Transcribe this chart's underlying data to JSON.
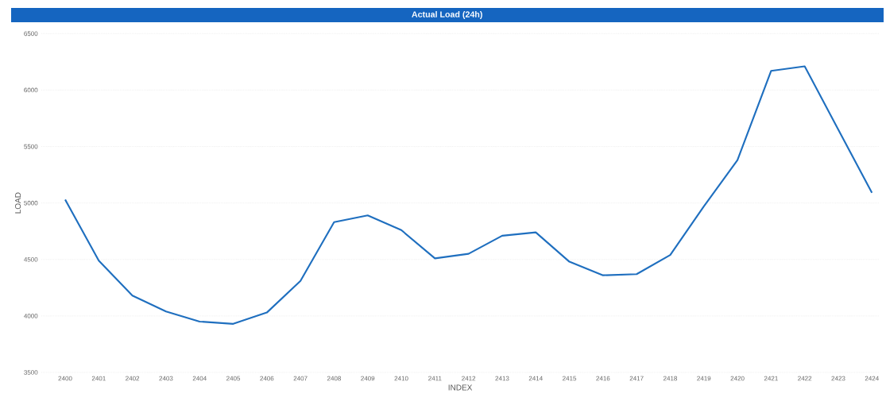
{
  "chart_data": {
    "type": "line",
    "title": "Actual Load (24h)",
    "xlabel": "INDEX",
    "ylabel": "LOAD",
    "categories": [
      "2400",
      "2401",
      "2402",
      "2403",
      "2404",
      "2405",
      "2406",
      "2407",
      "2408",
      "2409",
      "2410",
      "2411",
      "2412",
      "2413",
      "2414",
      "2415",
      "2416",
      "2417",
      "2418",
      "2419",
      "2420",
      "2421",
      "2422",
      "2423",
      "2424"
    ],
    "values": [
      5030,
      4490,
      4180,
      4040,
      3950,
      3930,
      4030,
      4310,
      4830,
      4890,
      4760,
      4510,
      4550,
      4710,
      4740,
      4480,
      4360,
      4370,
      4540,
      4970,
      5380,
      6170,
      6210,
      5650,
      5090
    ],
    "color": "#1f6fbf",
    "ylim": [
      3500,
      6500
    ],
    "yticks": [
      3500,
      4000,
      4500,
      5000,
      5500,
      6000,
      6500
    ],
    "grid": "y",
    "marker": "none",
    "line_style": "solid"
  }
}
